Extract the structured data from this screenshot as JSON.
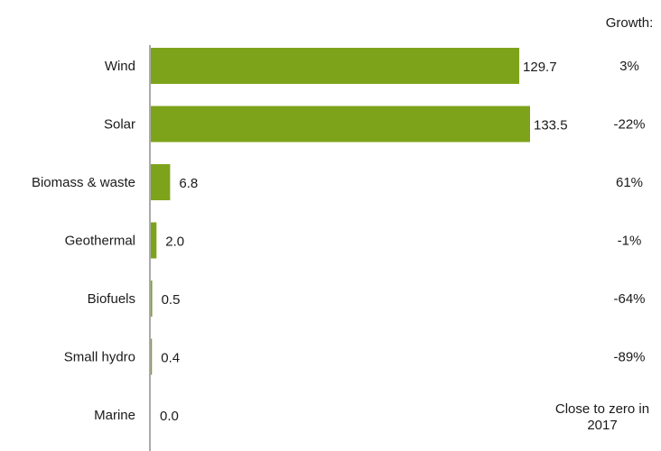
{
  "chart_data": {
    "type": "bar",
    "orientation": "horizontal",
    "categories": [
      "Wind",
      "Solar",
      "Biomass & waste",
      "Geothermal",
      "Biofuels",
      "Small hydro",
      "Marine"
    ],
    "values": [
      129.7,
      133.5,
      6.8,
      2.0,
      0.5,
      0.4,
      0.0
    ],
    "value_labels": [
      "129.7",
      "133.5",
      "6.8",
      "2.0",
      "0.5",
      "0.4",
      "0.0"
    ],
    "growth_header": "Growth:",
    "growth": [
      "3%",
      "-22%",
      "61%",
      "-1%",
      "-64%",
      "-89%",
      "Close to zero in 2017"
    ],
    "xlim": [
      0,
      135
    ],
    "grid": false,
    "bar_color": "#7da31a",
    "axis_color": "#555555"
  }
}
